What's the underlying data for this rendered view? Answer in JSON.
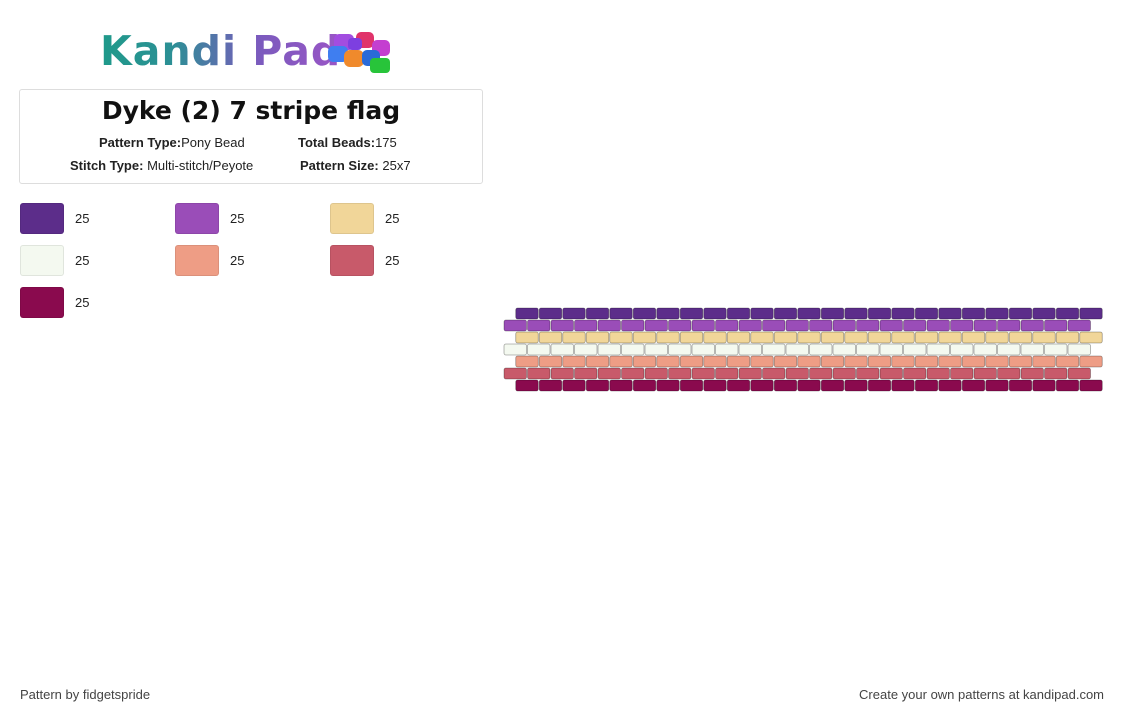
{
  "header": {
    "logo_text": "Kandi Pad",
    "logo_icon": "beads-icon"
  },
  "info": {
    "title": "Dyke (2) 7 stripe flag",
    "pattern_type_label": "Pattern Type:",
    "pattern_type_value": "Pony Bead",
    "total_beads_label": "Total Beads:",
    "total_beads_value": "175",
    "stitch_type_label": "Stitch Type:",
    "stitch_type_value": "Multi-stitch/Peyote",
    "pattern_size_label": "Pattern Size:",
    "pattern_size_value": "25x7"
  },
  "palette": [
    {
      "color": "#5c2d8a",
      "count": "25"
    },
    {
      "color": "#9a4db8",
      "count": "25"
    },
    {
      "color": "#f1d699",
      "count": "25"
    },
    {
      "color": "#f4f9f0",
      "count": "25"
    },
    {
      "color": "#ee9d85",
      "count": "25"
    },
    {
      "color": "#c85a6a",
      "count": "25"
    },
    {
      "color": "#8a0a4e",
      "count": "25"
    }
  ],
  "pattern": {
    "columns": 25,
    "rows": [
      {
        "color": "#5c2d8a"
      },
      {
        "color": "#9a4db8"
      },
      {
        "color": "#f1d699"
      },
      {
        "color": "#f4f9f0"
      },
      {
        "color": "#ee9d85"
      },
      {
        "color": "#c85a6a"
      },
      {
        "color": "#8a0a4e"
      }
    ]
  },
  "footer": {
    "credit": "Pattern by fidgetspride",
    "cta": "Create your own patterns at kandipad.com"
  }
}
